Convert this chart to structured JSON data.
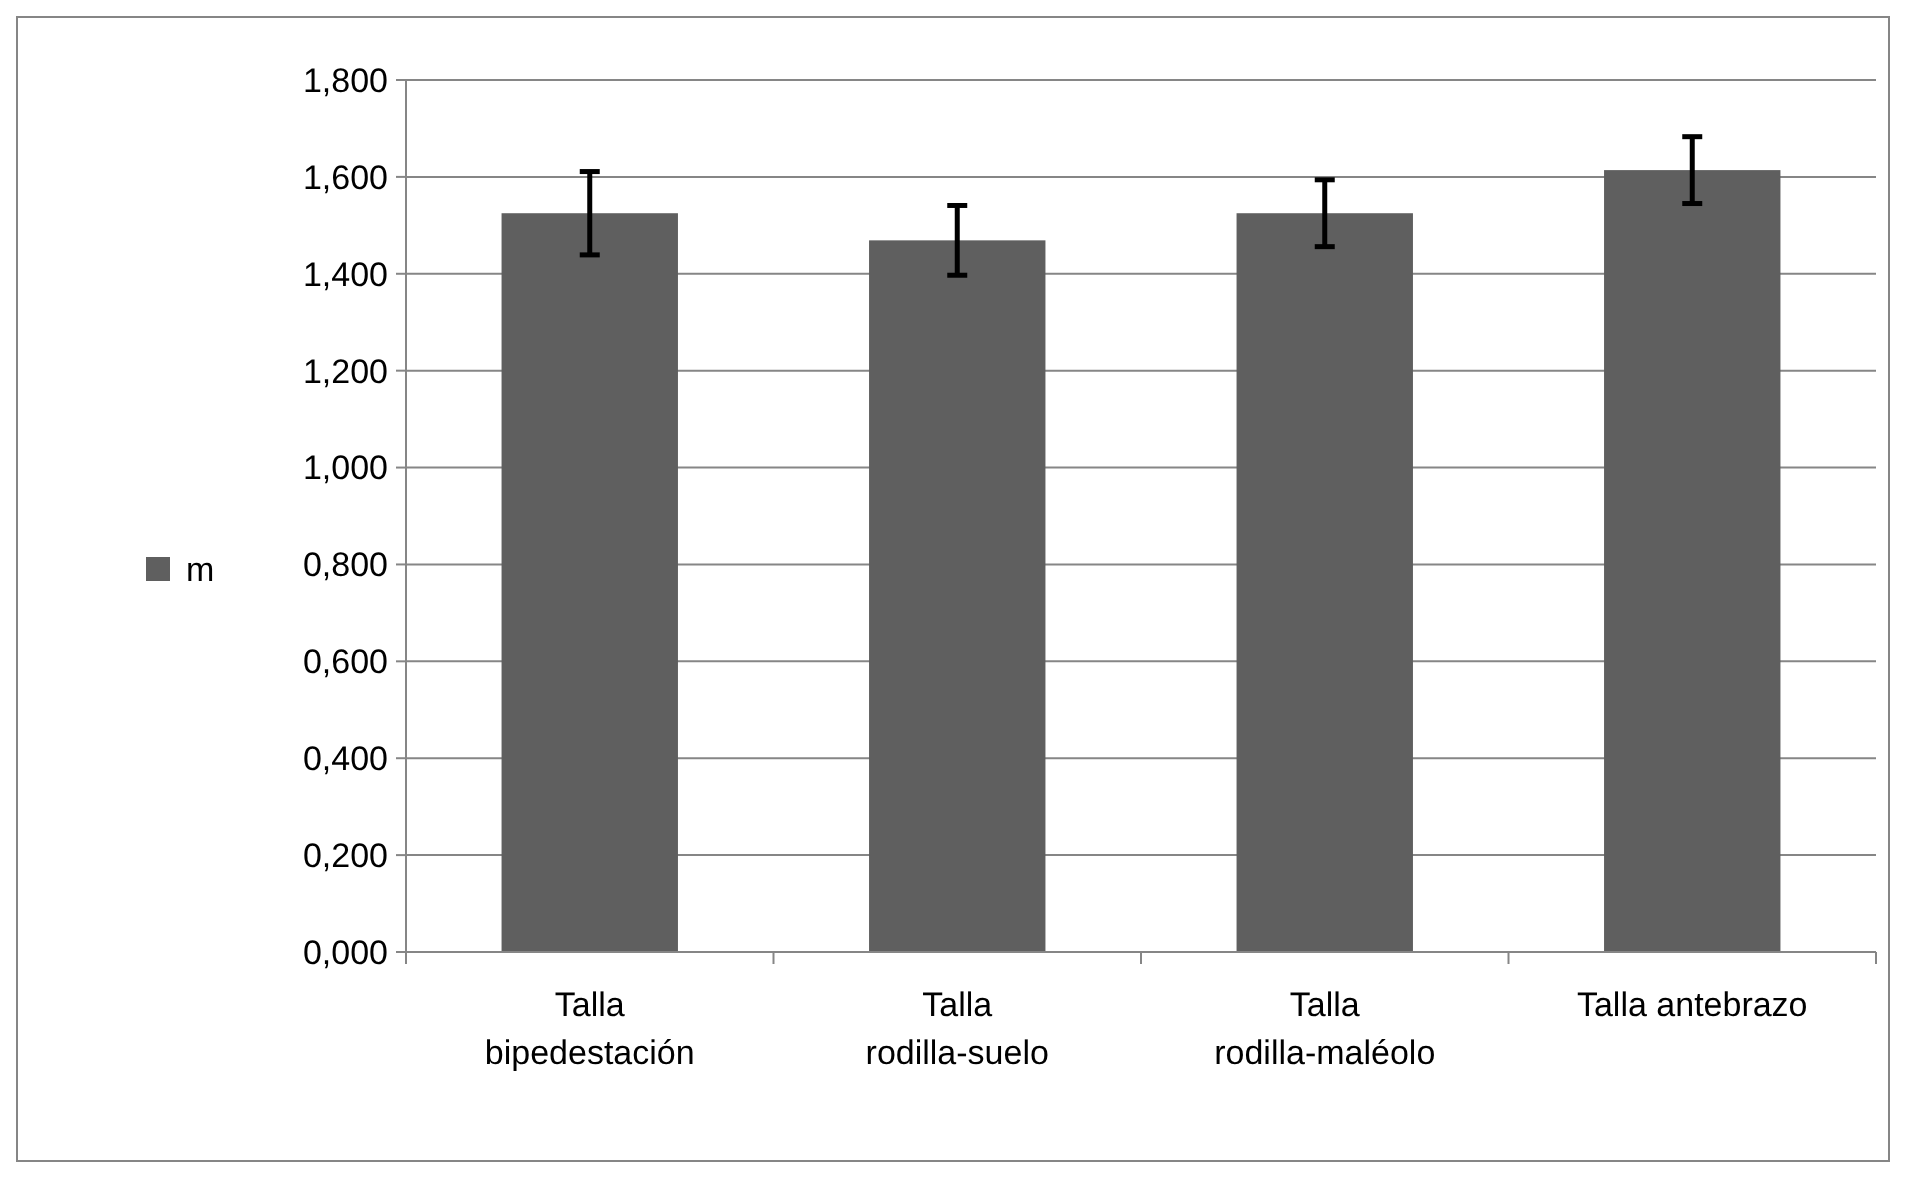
{
  "chart_data": {
    "type": "bar",
    "categories": [
      "Talla bipedestación",
      "Talla rodilla-suelo",
      "Talla rodilla-maléolo",
      "Talla antebrazo"
    ],
    "series": [
      {
        "name": "m",
        "color": "#5f5f5f",
        "values": [
          1.525,
          1.469,
          1.525,
          1.614
        ],
        "errors": [
          0.086,
          0.072,
          0.069,
          0.069
        ]
      }
    ],
    "ylim": [
      0,
      1.8
    ],
    "yticks": [
      {
        "value": 0,
        "label": "0,000"
      },
      {
        "value": 0.2,
        "label": "0,200"
      },
      {
        "value": 0.4,
        "label": "0,400"
      },
      {
        "value": 0.6,
        "label": "0,600"
      },
      {
        "value": 0.8,
        "label": "0,800"
      },
      {
        "value": 1,
        "label": "1,000"
      },
      {
        "value": 1.2,
        "label": "1,200"
      },
      {
        "value": 1.4,
        "label": "1,400"
      },
      {
        "value": 1.6,
        "label": "1,600"
      },
      {
        "value": 1.8,
        "label": "1,800"
      }
    ],
    "grid": "y",
    "legend": "left"
  }
}
